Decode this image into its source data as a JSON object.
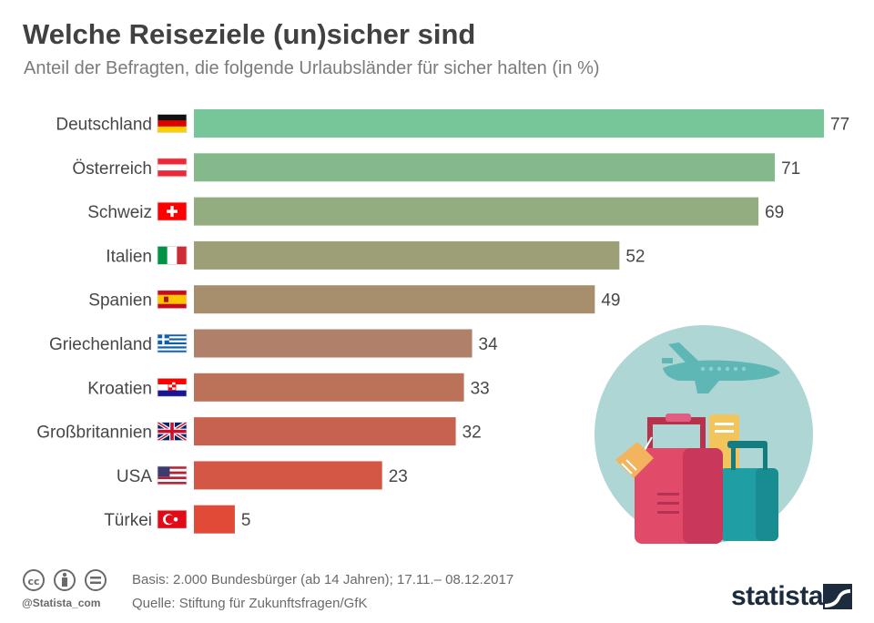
{
  "header": {
    "title": "Welche Reiseziele (un)sicher sind",
    "subtitle": "Anteil der Befragten, die folgende Urlaubsländer für sicher halten (in %)"
  },
  "chart_data": {
    "type": "bar",
    "orientation": "horizontal",
    "title": "Welche Reiseziele (un)sicher sind",
    "subtitle": "Anteil der Befragten, die folgende Urlaubsländer für sicher halten (in %)",
    "categories": [
      "Deutschland",
      "Österreich",
      "Schweiz",
      "Italien",
      "Spanien",
      "Griechenland",
      "Kroatien",
      "Großbritannien",
      "USA",
      "Türkei"
    ],
    "values": [
      77,
      71,
      69,
      52,
      49,
      34,
      33,
      32,
      23,
      5
    ],
    "xlim": [
      0,
      77
    ],
    "bar_colors": [
      "#77c69a",
      "#84b98b",
      "#93ac80",
      "#9d9f77",
      "#a78f6d",
      "#b0806a",
      "#bb7259",
      "#c6624f",
      "#d45644",
      "#e04a37"
    ],
    "flags": [
      "flag-germany-icon",
      "flag-austria-icon",
      "flag-switzerland-icon",
      "flag-italy-icon",
      "flag-spain-icon",
      "flag-greece-icon",
      "flag-croatia-icon",
      "flag-uk-icon",
      "flag-usa-icon",
      "flag-turkey-icon"
    ],
    "grid": false,
    "legend": "none"
  },
  "footer": {
    "handle": "@Statista_com",
    "basis": "Basis: 2.000 Bundesbürger (ab 14 Jahren); 17.11.– 08.12.2017",
    "source": "Quelle: Stiftung für Zukunftsfragen/GfK",
    "logo": "statista"
  }
}
